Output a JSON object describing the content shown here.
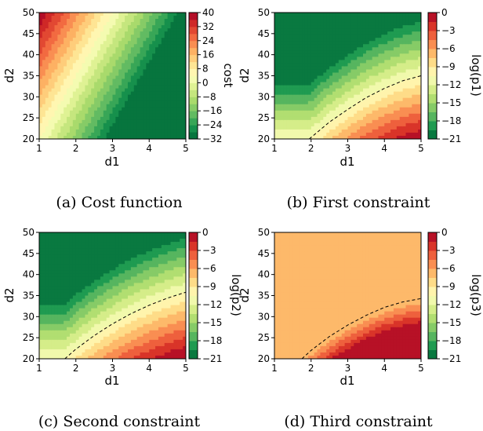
{
  "chart_data": [
    {
      "id": "a",
      "type": "heatmap",
      "caption": "(a) Cost function",
      "xlabel": "d1",
      "ylabel": "d2",
      "xlim": [
        1,
        5
      ],
      "ylim": [
        20,
        50
      ],
      "xticks": [
        "1",
        "2",
        "3",
        "4",
        "5"
      ],
      "yticks": [
        "20",
        "25",
        "30",
        "35",
        "40",
        "45",
        "50"
      ],
      "colorbar": {
        "label": "cost",
        "range": [
          -32,
          40
        ],
        "ticks": [
          "40",
          "32",
          "24",
          "16",
          "8",
          "0",
          "−8",
          "−16",
          "−24",
          "−32"
        ],
        "tick_values": [
          40,
          32,
          24,
          16,
          8,
          0,
          -8,
          -16,
          -24,
          -32
        ],
        "levels": 18
      },
      "contour_line": false
    },
    {
      "id": "b",
      "type": "heatmap",
      "caption": "(b) First constraint",
      "xlabel": "d1",
      "ylabel": "d2",
      "xlim": [
        1,
        5
      ],
      "ylim": [
        20,
        50
      ],
      "xticks": [
        "1",
        "2",
        "3",
        "4",
        "5"
      ],
      "yticks": [
        "20",
        "25",
        "30",
        "35",
        "40",
        "45",
        "50"
      ],
      "colorbar": {
        "label": "log(p1)",
        "range": [
          -21,
          0
        ],
        "ticks": [
          "0",
          "−3",
          "−6",
          "−9",
          "−12",
          "−15",
          "−18",
          "−21"
        ],
        "tick_values": [
          0,
          -3,
          -6,
          -9,
          -12,
          -15,
          -18,
          -21
        ],
        "levels": 14
      },
      "contour_line": true,
      "contour_points": [
        [
          1.95,
          20
        ],
        [
          2.5,
          24
        ],
        [
          3,
          27
        ],
        [
          3.5,
          29.8
        ],
        [
          4,
          32
        ],
        [
          4.5,
          33.8
        ],
        [
          5,
          35
        ]
      ]
    },
    {
      "id": "c",
      "type": "heatmap",
      "caption": "(c) Second constraint",
      "xlabel": "d1",
      "ylabel": "d2",
      "xlim": [
        1,
        5
      ],
      "ylim": [
        20,
        50
      ],
      "xticks": [
        "1",
        "2",
        "3",
        "4",
        "5"
      ],
      "yticks": [
        "20",
        "25",
        "30",
        "35",
        "40",
        "45",
        "50"
      ],
      "colorbar": {
        "label": "log(p2)",
        "range": [
          -21,
          0
        ],
        "ticks": [
          "0",
          "−3",
          "−6",
          "−9",
          "−12",
          "−15",
          "−18",
          "−21"
        ],
        "tick_values": [
          0,
          -3,
          -6,
          -9,
          -12,
          -15,
          -18,
          -21
        ],
        "levels": 14
      },
      "contour_line": true,
      "contour_points": [
        [
          1.7,
          20
        ],
        [
          2,
          22.3
        ],
        [
          2.5,
          25.5
        ],
        [
          3,
          28.3
        ],
        [
          3.5,
          30.7
        ],
        [
          4,
          32.7
        ],
        [
          4.5,
          34.4
        ],
        [
          5,
          35.8
        ]
      ]
    },
    {
      "id": "d",
      "type": "heatmap",
      "caption": "(d) Third constraint",
      "xlabel": "d1",
      "ylabel": "d2",
      "xlim": [
        1,
        5
      ],
      "ylim": [
        20,
        50
      ],
      "xticks": [
        "1",
        "2",
        "3",
        "4",
        "5"
      ],
      "yticks": [
        "20",
        "25",
        "30",
        "35",
        "40",
        "45",
        "50"
      ],
      "colorbar": {
        "label": "log(p3)",
        "range": [
          -21,
          0
        ],
        "ticks": [
          "0",
          "−3",
          "−6",
          "−9",
          "−12",
          "−15",
          "−18",
          "−21"
        ],
        "tick_values": [
          0,
          -3,
          -6,
          -9,
          -12,
          -15,
          -18,
          -21
        ],
        "levels": 14
      },
      "contour_line": true,
      "contour_points": [
        [
          1.75,
          20
        ],
        [
          2,
          22
        ],
        [
          2.5,
          25.3
        ],
        [
          3,
          28
        ],
        [
          3.5,
          30.3
        ],
        [
          4,
          32.2
        ],
        [
          4.5,
          33.5
        ],
        [
          5,
          34.3
        ]
      ]
    }
  ],
  "colors": {
    "colormap": [
      "#006837",
      "#1a9850",
      "#66bd63",
      "#a6d96a",
      "#d9ef8b",
      "#ffffbf",
      "#fee08b",
      "#fdae61",
      "#f46d43",
      "#d73027",
      "#a50026"
    ],
    "frame": "#000000",
    "contour": "#000000"
  }
}
